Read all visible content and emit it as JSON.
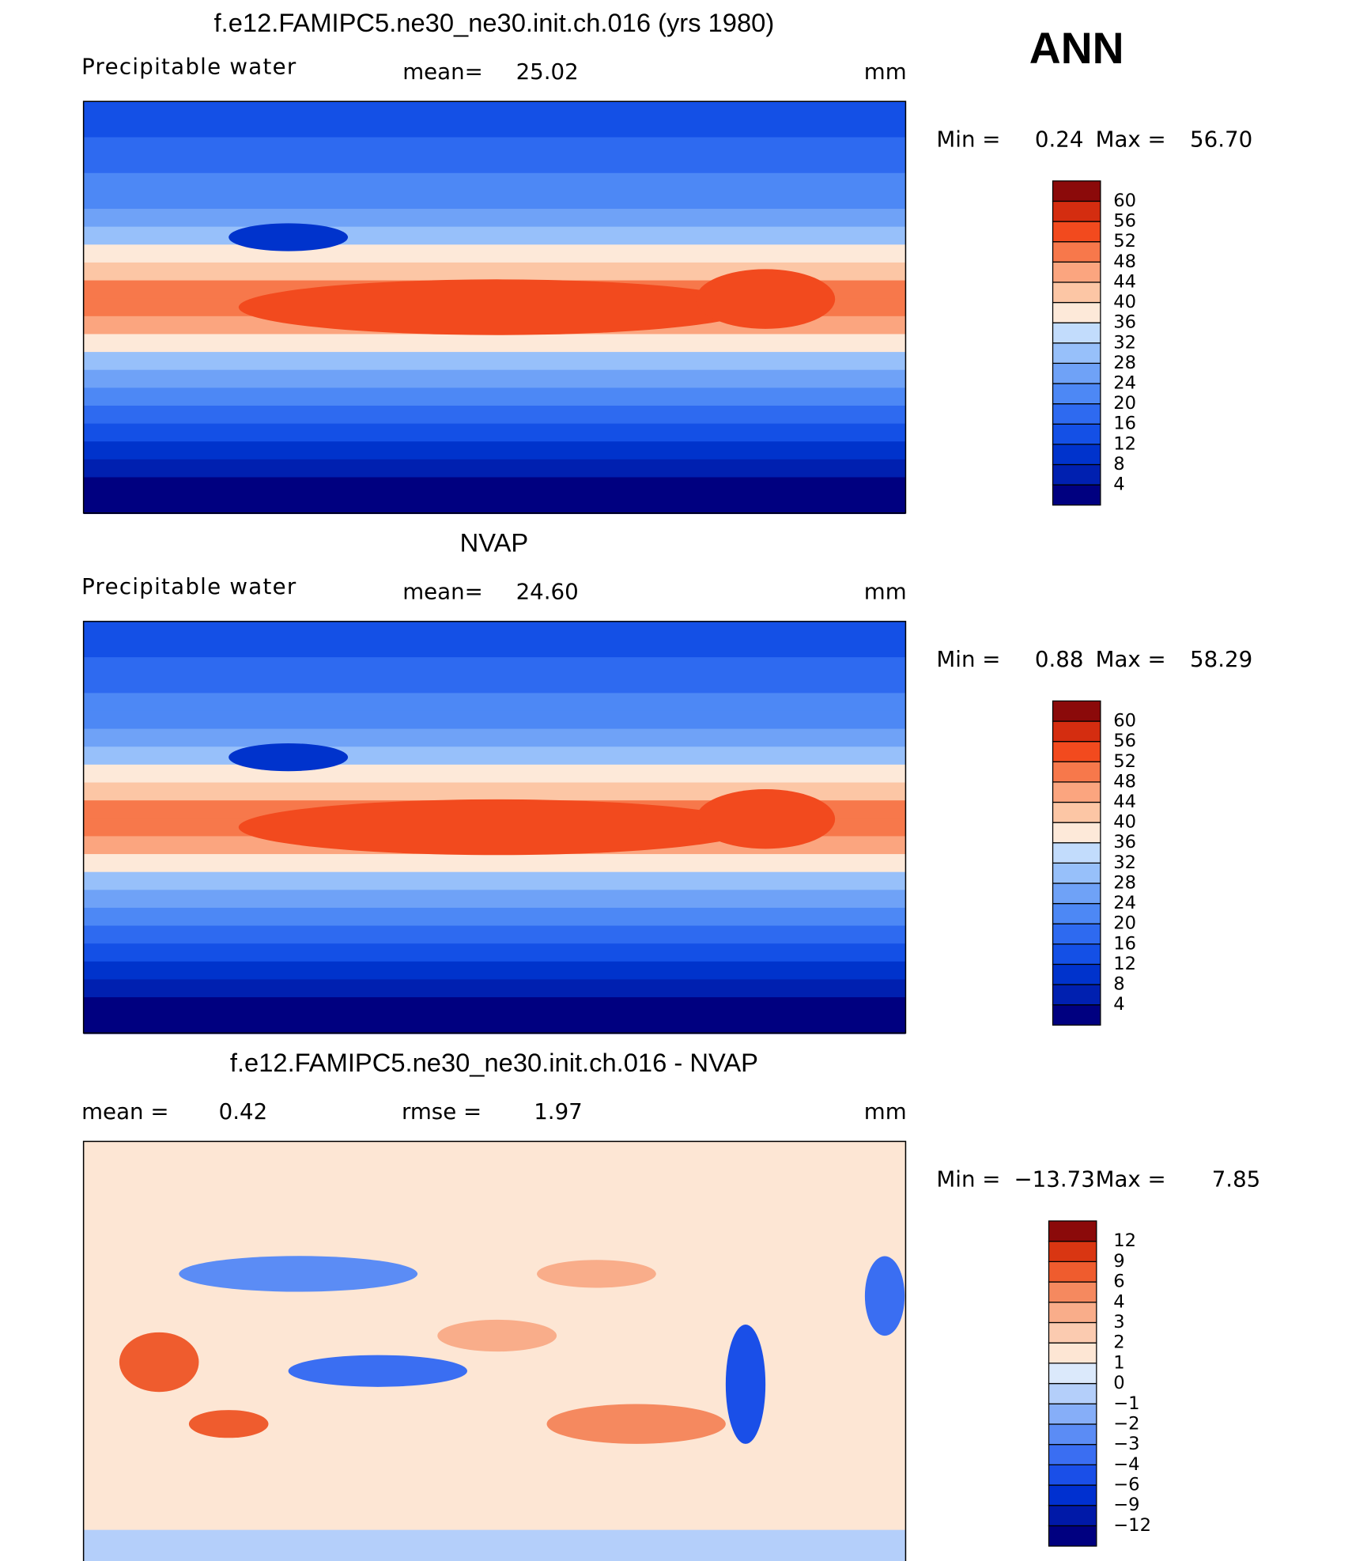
{
  "title_right": "ANN",
  "panels": [
    {
      "title": "f.e12.FAMIPC5.ne30_ne30.init.ch.016 (yrs 1980)",
      "field": "Precipitable water",
      "mean_label": "mean=",
      "mean": "25.02",
      "units": "mm",
      "min_label": "Min =",
      "min": "0.24",
      "max_label": "Max =",
      "max": "56.70",
      "levels": [
        4,
        8,
        12,
        16,
        20,
        24,
        28,
        32,
        36,
        40,
        44,
        48,
        52,
        56,
        60
      ],
      "colors": [
        "#000080",
        "#0020b0",
        "#0033cc",
        "#1450e6",
        "#2e6af0",
        "#4d88f5",
        "#6fa2f7",
        "#97c0fa",
        "#c2dcfc",
        "#fde9d9",
        "#fcc6a5",
        "#fba57f",
        "#f7784b",
        "#f24a1e",
        "#d42d10",
        "#8b0a0a"
      ]
    },
    {
      "title": "NVAP",
      "field": "Precipitable water",
      "mean_label": "mean=",
      "mean": "24.60",
      "units": "mm",
      "min_label": "Min =",
      "min": "0.88",
      "max_label": "Max =",
      "max": "58.29",
      "levels": [
        4,
        8,
        12,
        16,
        20,
        24,
        28,
        32,
        36,
        40,
        44,
        48,
        52,
        56,
        60
      ],
      "colors": [
        "#000080",
        "#0020b0",
        "#0033cc",
        "#1450e6",
        "#2e6af0",
        "#4d88f5",
        "#6fa2f7",
        "#97c0fa",
        "#c2dcfc",
        "#fde9d9",
        "#fcc6a5",
        "#fba57f",
        "#f7784b",
        "#f24a1e",
        "#d42d10",
        "#8b0a0a"
      ]
    },
    {
      "title": "f.e12.FAMIPC5.ne30_ne30.init.ch.016 - NVAP",
      "mean_label": "mean =",
      "mean": "0.42",
      "rmse_label": "rmse =",
      "rmse": "1.97",
      "units": "mm",
      "min_label": "Min =",
      "min": "−13.73",
      "max_label": "Max =",
      "max": "7.85",
      "levels": [
        {
          "value": -12,
          "label": "−12"
        },
        {
          "value": -9,
          "label": "−9"
        },
        {
          "value": -6,
          "label": "−6"
        },
        {
          "value": -4,
          "label": "−4"
        },
        {
          "value": -3,
          "label": "−3"
        },
        {
          "value": -2,
          "label": "−2"
        },
        {
          "value": -1,
          "label": "−1"
        },
        0,
        1,
        2,
        3,
        4,
        6,
        9,
        12
      ],
      "colors": [
        "#000080",
        "#0019a8",
        "#0030d0",
        "#1a4fe8",
        "#3a6ef2",
        "#5b8cf5",
        "#86aef8",
        "#b4cffa",
        "#dbe9fb",
        "#fde6d4",
        "#fbcbb0",
        "#f9ad8a",
        "#f5895f",
        "#ef5c2e",
        "#d93612",
        "#8b0a0a"
      ]
    }
  ]
}
